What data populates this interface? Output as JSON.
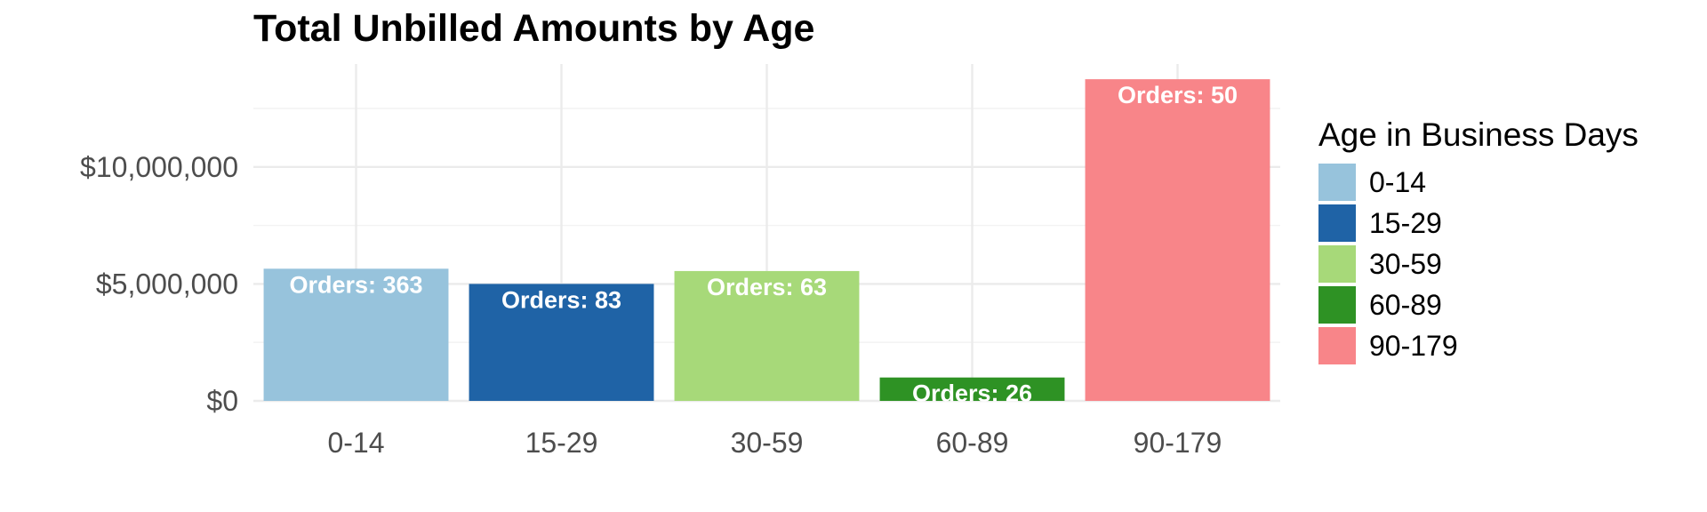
{
  "chart_data": {
    "type": "bar",
    "title": "Total Unbilled Amounts by Age",
    "xlabel": "",
    "ylabel": "",
    "categories": [
      "0-14",
      "15-29",
      "30-59",
      "60-89",
      "90-179"
    ],
    "values": [
      5650000,
      5000000,
      5550000,
      1000000,
      13750000
    ],
    "data_labels": [
      "Orders: 363",
      "Orders: 83",
      "Orders: 63",
      "Orders: 26",
      "Orders: 50"
    ],
    "colors": [
      "#97c3dc",
      "#1f63a6",
      "#a7d979",
      "#2e9224",
      "#f88589"
    ],
    "ylim": [
      0,
      14400000
    ],
    "y_ticks": [
      0,
      5000000,
      10000000
    ],
    "y_tick_labels": [
      "$0",
      "$5,000,000",
      "$10,000,000"
    ],
    "y_minor_ticks": [
      2500000,
      7500000,
      12500000
    ],
    "grid": true,
    "legend": {
      "title": "Age in Business Days",
      "position": "right",
      "entries": [
        "0-14",
        "15-29",
        "30-59",
        "60-89",
        "90-179"
      ]
    }
  }
}
